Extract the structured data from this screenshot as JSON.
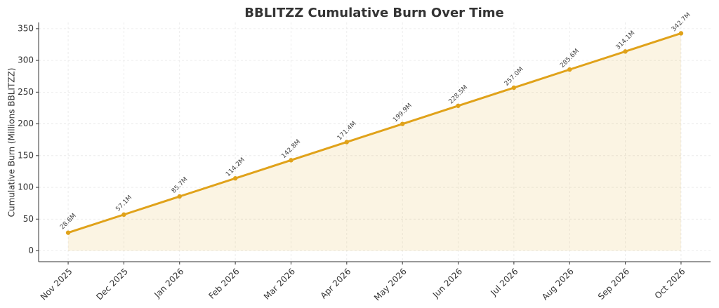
{
  "chart_data": {
    "type": "line",
    "title": "BBLITZZ Cumulative Burn Over Time",
    "ylabel": "Cumulative Burn (Millions BBLITZZ)",
    "categories": [
      "Nov 2025",
      "Dec 2025",
      "Jan 2026",
      "Feb 2026",
      "Mar 2026",
      "Apr 2026",
      "May 2026",
      "Jun 2026",
      "Jul 2026",
      "Aug 2026",
      "Sep 2026",
      "Oct 2026"
    ],
    "values": [
      28.6,
      57.1,
      85.7,
      114.2,
      142.8,
      171.4,
      199.9,
      228.5,
      257.0,
      285.6,
      314.1,
      342.7
    ],
    "value_labels": [
      "28.6M",
      "57.1M",
      "85.7M",
      "114.2M",
      "142.8M",
      "171.4M",
      "199.9M",
      "228.5M",
      "257.0M",
      "285.6M",
      "314.1M",
      "342.7M"
    ],
    "color": "#e0a21a",
    "area_fill": true,
    "ylim": [
      -17.1,
      359.8
    ],
    "yticks": [
      0,
      50,
      100,
      150,
      200,
      250,
      300,
      350
    ],
    "grid": true
  }
}
